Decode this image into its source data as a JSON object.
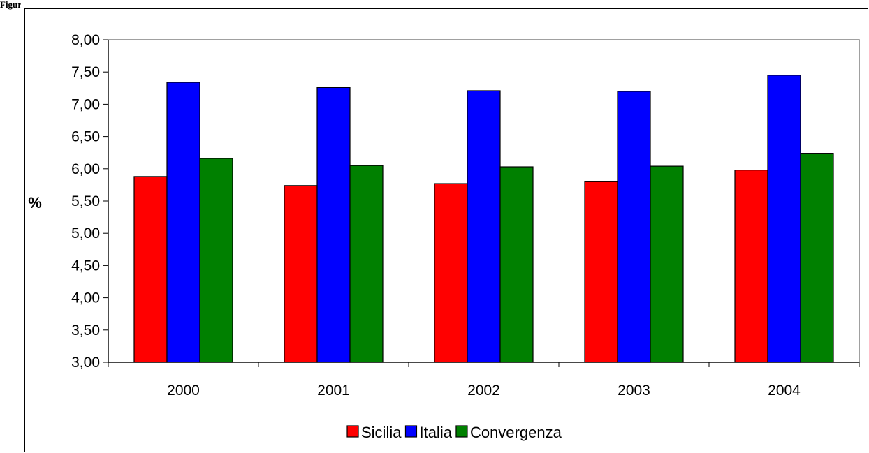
{
  "figure_label": "Figura",
  "chart_data": {
    "type": "bar",
    "categories": [
      "2000",
      "2001",
      "2002",
      "2003",
      "2004"
    ],
    "series": [
      {
        "name": "Sicilia",
        "color": "#ff0000",
        "values": [
          5.88,
          5.74,
          5.77,
          5.8,
          5.98
        ]
      },
      {
        "name": "Italia",
        "color": "#0000ff",
        "values": [
          7.34,
          7.26,
          7.21,
          7.2,
          7.45
        ]
      },
      {
        "name": "Convergenza",
        "color": "#008000",
        "values": [
          6.16,
          6.05,
          6.03,
          6.04,
          6.24
        ]
      }
    ],
    "ylabel": "%",
    "ylim": [
      3.0,
      8.0
    ],
    "yticks": [
      "3,00",
      "3,50",
      "4,00",
      "4,50",
      "5,00",
      "5,50",
      "6,00",
      "6,50",
      "7,00",
      "7,50",
      "8,00"
    ],
    "grid": false,
    "legend_position": "bottom",
    "plot_background": "#ffffff",
    "plot_border_color": "#808080"
  }
}
